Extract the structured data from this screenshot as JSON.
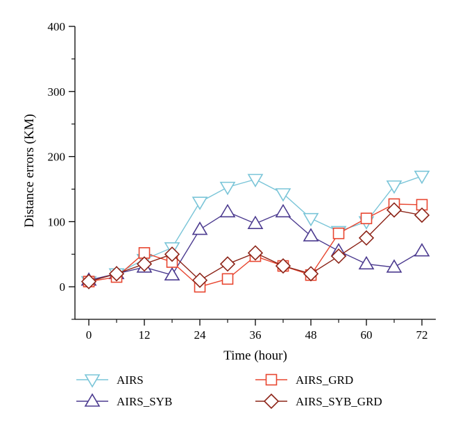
{
  "chart_data": {
    "type": "line",
    "title": "",
    "xlabel": "Time (hour)",
    "ylabel": "Distance errors (KM)",
    "xlim": [
      -3,
      75
    ],
    "ylim": [
      -50,
      400
    ],
    "xticks": [
      0,
      12,
      24,
      36,
      48,
      60,
      72
    ],
    "yticks": [
      0,
      100,
      200,
      300,
      400
    ],
    "grid": false,
    "legend_position": "bottom",
    "x": [
      0,
      6,
      12,
      18,
      24,
      30,
      36,
      42,
      48,
      54,
      60,
      66,
      72
    ],
    "series": [
      {
        "name": "AIRS",
        "color": "#7ac5d8",
        "marker": "triangle-down",
        "values": [
          8,
          20,
          42,
          60,
          130,
          153,
          165,
          143,
          105,
          85,
          100,
          155,
          170
        ]
      },
      {
        "name": "AIRS_SYB",
        "color": "#4b3a8f",
        "marker": "triangle-up",
        "values": [
          10,
          20,
          30,
          18,
          88,
          115,
          97,
          115,
          78,
          55,
          35,
          30,
          55
        ]
      },
      {
        "name": "AIRS_GRD",
        "color": "#e8452f",
        "marker": "square",
        "values": [
          8,
          15,
          52,
          38,
          0,
          12,
          47,
          32,
          18,
          82,
          105,
          127,
          126
        ]
      },
      {
        "name": "AIRS_SYB_GRD",
        "color": "#8c2317",
        "marker": "diamond",
        "values": [
          8,
          20,
          35,
          50,
          10,
          35,
          52,
          32,
          20,
          47,
          75,
          118,
          110
        ]
      }
    ]
  }
}
